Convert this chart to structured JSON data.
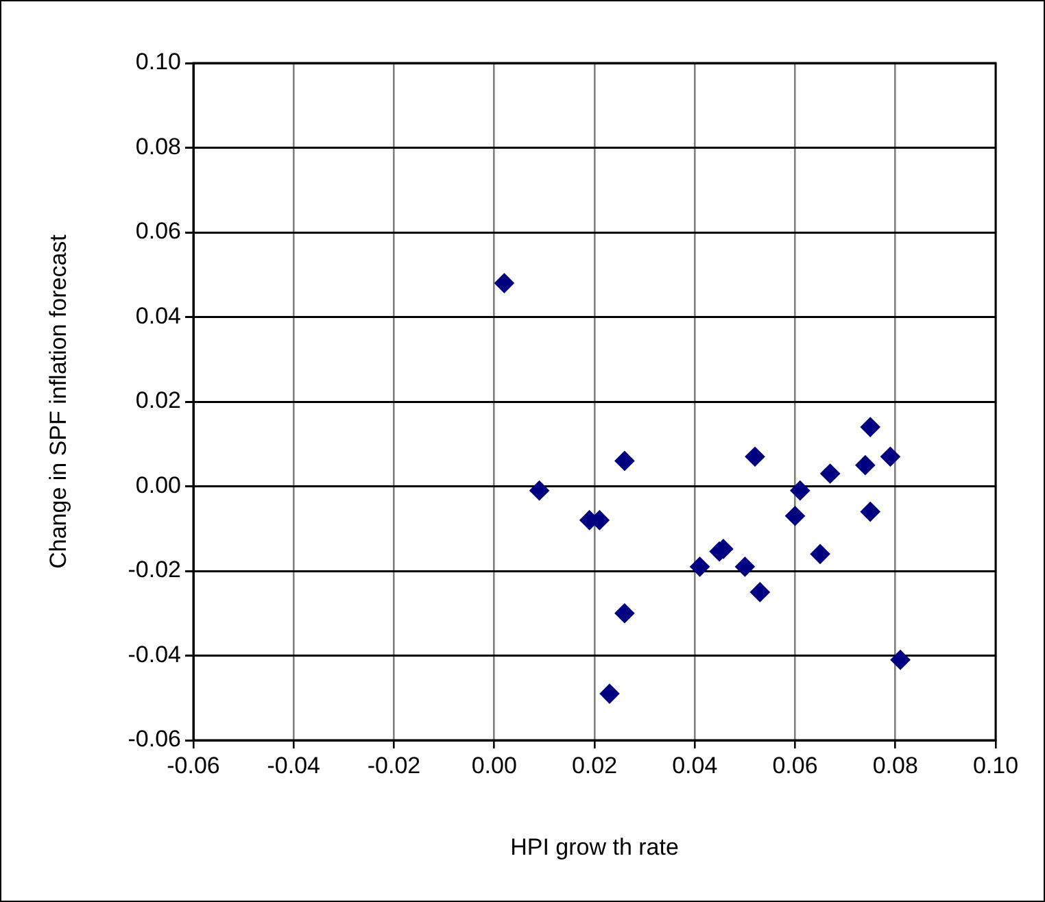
{
  "chart_data": {
    "type": "scatter",
    "xlabel": "HPI grow th rate",
    "ylabel": "Change in SPF inflation forecast",
    "x": [
      0.002,
      0.009,
      0.019,
      0.021,
      0.026,
      0.026,
      0.023,
      0.041,
      0.0449,
      0.0457,
      0.05,
      0.052,
      0.053,
      0.06,
      0.061,
      0.065,
      0.067,
      0.074,
      0.075,
      0.075,
      0.079,
      0.081
    ],
    "series": [
      {
        "color": "#000080",
        "values": [
          0.048,
          -0.001,
          -0.008,
          -0.008,
          0.006,
          -0.03,
          -0.049,
          -0.019,
          -0.0154,
          -0.0148,
          -0.019,
          0.007,
          -0.025,
          -0.007,
          -0.001,
          -0.016,
          0.003,
          0.005,
          0.014,
          -0.006,
          0.007,
          -0.041
        ]
      }
    ],
    "xlim": [
      -0.06,
      0.1
    ],
    "xticks": [
      {
        "value": -0.06,
        "label": "-0.06"
      },
      {
        "value": -0.04,
        "label": "-0.04"
      },
      {
        "value": -0.02,
        "label": "-0.02"
      },
      {
        "value": 0,
        "label": "0.00"
      },
      {
        "value": 0.02,
        "label": "0.02"
      },
      {
        "value": 0.04,
        "label": "0.04"
      },
      {
        "value": 0.06,
        "label": "0.06"
      },
      {
        "value": 0.08,
        "label": "0.08"
      },
      {
        "value": 0.1,
        "label": "0.10"
      }
    ],
    "ylim": [
      -0.06,
      0.1
    ],
    "yticks": [
      {
        "value": -0.06,
        "label": "-0.06"
      },
      {
        "value": -0.04,
        "label": "-0.04"
      },
      {
        "value": -0.02,
        "label": "-0.02"
      },
      {
        "value": 0,
        "label": "0.00"
      },
      {
        "value": 0.02,
        "label": "0.02"
      },
      {
        "value": 0.04,
        "label": "0.04"
      },
      {
        "value": 0.06,
        "label": "0.06"
      },
      {
        "value": 0.08,
        "label": "0.08"
      },
      {
        "value": 0.1,
        "label": "0.10"
      }
    ],
    "grid": true,
    "legend": false,
    "marker": "diamond"
  }
}
